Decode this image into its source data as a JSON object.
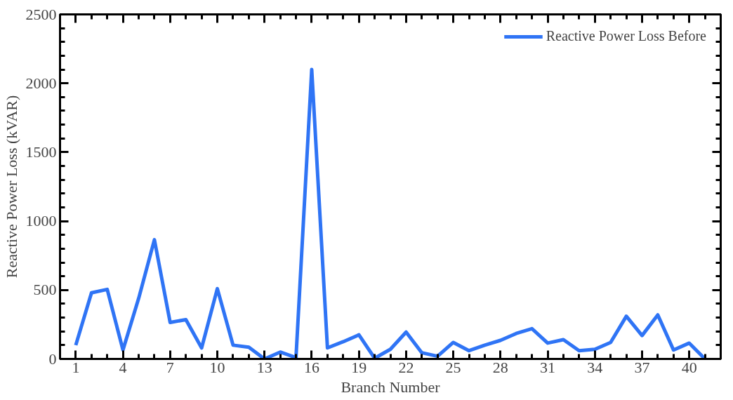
{
  "chart_data": {
    "type": "line",
    "xlabel": "Branch Number",
    "ylabel": "Reactive Power Loss (kVAR)",
    "x": [
      1,
      2,
      3,
      4,
      5,
      6,
      7,
      8,
      9,
      10,
      11,
      12,
      13,
      14,
      15,
      16,
      17,
      18,
      19,
      20,
      21,
      22,
      23,
      24,
      25,
      26,
      27,
      28,
      29,
      30,
      31,
      32,
      33,
      34,
      35,
      36,
      37,
      38,
      39,
      40,
      41
    ],
    "series": [
      {
        "name": "Reactive Power Loss Before",
        "color": "#2f74f5",
        "values": [
          100,
          480,
          505,
          65,
          440,
          865,
          265,
          285,
          80,
          510,
          100,
          85,
          0,
          50,
          10,
          2100,
          80,
          125,
          175,
          5,
          70,
          195,
          45,
          20,
          120,
          60,
          100,
          135,
          185,
          220,
          115,
          140,
          60,
          70,
          120,
          310,
          170,
          320,
          65,
          115,
          0
        ]
      }
    ],
    "xlim": [
      0,
      42
    ],
    "xticks": [
      1,
      4,
      7,
      10,
      13,
      16,
      19,
      22,
      25,
      28,
      31,
      34,
      37,
      40
    ],
    "ylim": [
      0,
      2500
    ],
    "yticks": [
      0,
      500,
      1000,
      1500,
      2000,
      2500
    ],
    "legend": "top right",
    "grid": false,
    "marker": "none",
    "line_style": "solid"
  }
}
